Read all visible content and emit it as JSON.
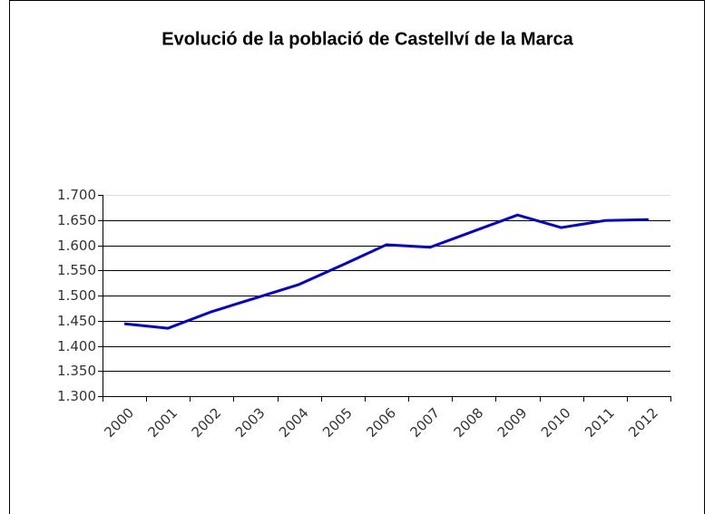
{
  "chart_data": {
    "type": "line",
    "title": "Evolució de la població de Castellví de la Marca",
    "categories": [
      "2000",
      "2001",
      "2002",
      "2003",
      "2004",
      "2005",
      "2006",
      "2007",
      "2008",
      "2009",
      "2010",
      "2011",
      "2012"
    ],
    "series": [
      {
        "color": "#0000dd",
        "values": [
          1444,
          1435,
          1468,
          1495,
          1522,
          1561,
          1601,
          1596,
          1628,
          1660,
          1635,
          1649,
          1651
        ]
      }
    ],
    "ylim": [
      1300,
      1700
    ],
    "yticks": [
      {
        "value": 1300,
        "label": "1.300"
      },
      {
        "value": 1350,
        "label": "1.350"
      },
      {
        "value": 1400,
        "label": "1.400"
      },
      {
        "value": 1450,
        "label": "1.450"
      },
      {
        "value": 1500,
        "label": "1.500"
      },
      {
        "value": 1550,
        "label": "1.550"
      },
      {
        "value": 1600,
        "label": "1.600"
      },
      {
        "value": 1650,
        "label": "1.650"
      },
      {
        "value": 1700,
        "label": "1.700"
      }
    ],
    "grid": true
  }
}
